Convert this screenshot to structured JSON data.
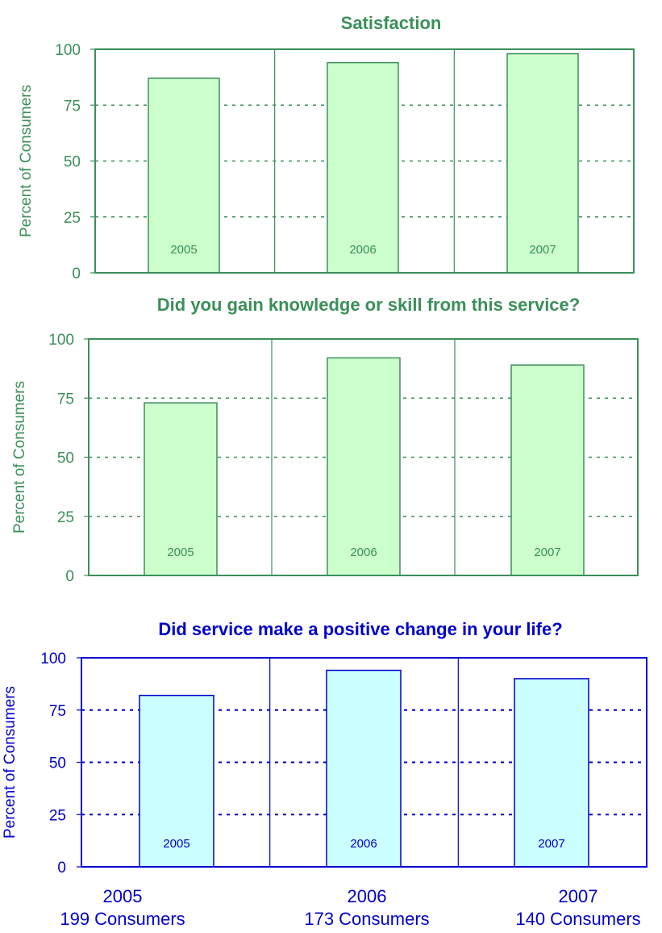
{
  "chart_data": [
    {
      "type": "bar",
      "title": "Satisfaction",
      "ylabel": "Percent of Consumers",
      "ylim": [
        0,
        100
      ],
      "yticks": [
        "0",
        "25",
        "50",
        "75",
        "100"
      ],
      "categories": [
        "2005",
        "2006",
        "2007"
      ],
      "values": [
        87,
        94,
        98
      ],
      "grid": true,
      "colors": {
        "accent": "#3b8f5a",
        "fill": "#ccffcc"
      }
    },
    {
      "type": "bar",
      "title": "Did you gain knowledge or skill from this service?",
      "ylabel": "Percent of Consumers",
      "ylim": [
        0,
        100
      ],
      "yticks": [
        "0",
        "25",
        "50",
        "75",
        "100"
      ],
      "categories": [
        "2005",
        "2006",
        "2007"
      ],
      "values": [
        73,
        92,
        89
      ],
      "grid": true,
      "colors": {
        "accent": "#3b8f5a",
        "fill": "#ccffcc"
      }
    },
    {
      "type": "bar",
      "title": "Did service make a positive change in your life?",
      "ylabel": "Percent of Consumers",
      "ylim": [
        0,
        100
      ],
      "yticks": [
        "0",
        "25",
        "50",
        "75",
        "100"
      ],
      "categories": [
        "2005",
        "2006",
        "2007"
      ],
      "values": [
        82,
        94,
        90
      ],
      "grid": true,
      "colors": {
        "accent": "#0000cc",
        "fill": "#ccffff"
      }
    }
  ],
  "footer": {
    "years": [
      "2005",
      "2006",
      "2007"
    ],
    "counts": [
      "199 Consumers",
      "173 Consumers",
      "140 Consumers"
    ],
    "color": "#0000cc"
  }
}
